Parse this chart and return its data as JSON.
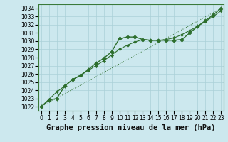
{
  "title": "Graphe pression niveau de la mer (hPa)",
  "xlabel_hours": [
    0,
    1,
    2,
    3,
    4,
    5,
    6,
    7,
    8,
    9,
    10,
    11,
    12,
    13,
    14,
    15,
    16,
    17,
    18,
    19,
    20,
    21,
    22,
    23
  ],
  "ylim": [
    1021.5,
    1034.5
  ],
  "yticks": [
    1022,
    1023,
    1024,
    1025,
    1026,
    1027,
    1028,
    1029,
    1030,
    1031,
    1032,
    1033,
    1034
  ],
  "background_color": "#cce8ee",
  "grid_color": "#aad0d8",
  "line_color": "#2d6e2d",
  "series_markers": [
    1022.0,
    1022.8,
    1023.0,
    1024.5,
    1025.3,
    1025.8,
    1026.5,
    1027.3,
    1027.9,
    1028.7,
    1030.3,
    1030.5,
    1030.5,
    1030.2,
    1030.1,
    1030.1,
    1030.1,
    1030.1,
    1030.2,
    1031.0,
    1031.8,
    1032.5,
    1033.2,
    1034.0
  ],
  "series_smooth": [
    1022.0,
    1022.9,
    1023.8,
    1024.5,
    1025.3,
    1025.8,
    1026.4,
    1027.0,
    1027.6,
    1028.3,
    1029.0,
    1029.5,
    1029.9,
    1030.2,
    1030.1,
    1030.1,
    1030.2,
    1030.4,
    1030.8,
    1031.3,
    1031.8,
    1032.4,
    1033.0,
    1033.7
  ],
  "series_linear": [
    1022.0,
    1022.52,
    1023.04,
    1023.57,
    1024.09,
    1024.61,
    1025.13,
    1025.65,
    1026.17,
    1026.7,
    1027.22,
    1027.74,
    1028.26,
    1028.78,
    1029.3,
    1029.83,
    1030.35,
    1030.87,
    1031.39,
    1031.91,
    1032.43,
    1032.96,
    1033.48,
    1034.0
  ],
  "marker": "D",
  "marker_size": 2.8,
  "linewidth": 1.0,
  "title_fontsize": 7.5,
  "tick_fontsize": 5.5
}
